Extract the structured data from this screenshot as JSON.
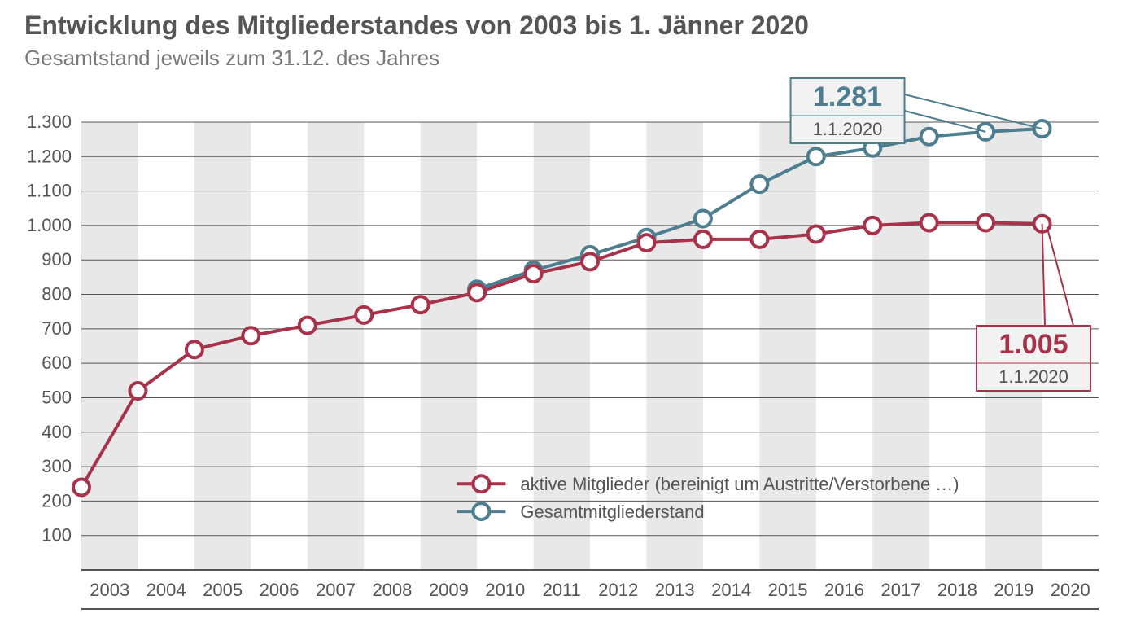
{
  "title": "Entwicklung des Mitgliederstandes von 2003 bis 1. Jänner 2020",
  "subtitle": "Gesamtstand jeweils zum 31.12. des Jahres",
  "title_fontsize": 32,
  "title_fontweight": 700,
  "subtitle_fontsize": 26,
  "colors": {
    "background": "#ffffff",
    "grid_band": "#e8e8e8",
    "axis_line": "#555555",
    "axis_text": "#555555",
    "title_text": "#555555",
    "subtitle_text": "#7a7a7a",
    "series_active": "#a8324a",
    "series_total": "#4d7e8f",
    "marker_fill": "#ffffff",
    "callout_bg": "#f2f2f2"
  },
  "chart": {
    "type": "line",
    "xlim": [
      2002.5,
      2020.5
    ],
    "ylim": [
      0,
      1300
    ],
    "y_ticks": [
      100,
      200,
      300,
      400,
      500,
      600,
      700,
      800,
      900,
      1000,
      1100,
      1200,
      1300
    ],
    "y_tick_labels": [
      "100",
      "200",
      "300",
      "400",
      "500",
      "600",
      "700",
      "800",
      "900",
      "1.000",
      "1.100",
      "1.200",
      "1.300"
    ],
    "x_ticks": [
      2003,
      2004,
      2005,
      2006,
      2007,
      2008,
      2009,
      2010,
      2011,
      2012,
      2013,
      2014,
      2015,
      2016,
      2017,
      2018,
      2019,
      2020
    ],
    "x_tick_labels": [
      "2003",
      "2004",
      "2005",
      "2006",
      "2007",
      "2008",
      "2009",
      "2010",
      "2011",
      "2012",
      "2013",
      "2014",
      "2015",
      "2016",
      "2017",
      "2018",
      "2019",
      "2020"
    ],
    "band_years": [
      2003,
      2005,
      2007,
      2009,
      2011,
      2013,
      2015,
      2017,
      2019
    ],
    "line_width": 4,
    "marker_radius": 10,
    "marker_stroke_width": 4,
    "axis_fontsize": 22
  },
  "series": {
    "active": {
      "label": "aktive Mitglieder (bereinigt um Austritte/Verstorbene …)",
      "color": "#a8324a",
      "x": [
        2002.5,
        2003.5,
        2004.5,
        2005.5,
        2006.5,
        2007.5,
        2008.5,
        2009.5,
        2010.5,
        2011.5,
        2012.5,
        2013.5,
        2014.5,
        2015.5,
        2016.5,
        2017.5,
        2018.5,
        2019.5
      ],
      "y": [
        240,
        520,
        640,
        680,
        710,
        740,
        770,
        805,
        860,
        895,
        950,
        960,
        960,
        975,
        1000,
        1008,
        1008,
        1005
      ]
    },
    "total": {
      "label": "Gesamtmitgliederstand",
      "color": "#4d7e8f",
      "x": [
        2009.5,
        2010.5,
        2011.5,
        2012.5,
        2013.5,
        2014.5,
        2015.5,
        2016.5,
        2017.5,
        2018.5,
        2019.5
      ],
      "y": [
        815,
        870,
        915,
        965,
        1020,
        1120,
        1200,
        1225,
        1258,
        1272,
        1281
      ]
    }
  },
  "callouts": {
    "total": {
      "value": "1.281",
      "date": "1.1.2020",
      "color": "#4d7e8f"
    },
    "active": {
      "value": "1.005",
      "date": "1.1.2020",
      "color": "#a8324a"
    }
  },
  "legend": {
    "fontsize": 22,
    "items": [
      {
        "key": "active",
        "label": "aktive Mitglieder (bereinigt um Austritte/Verstorbene …)"
      },
      {
        "key": "total",
        "label": "Gesamtmitgliederstand"
      }
    ]
  }
}
